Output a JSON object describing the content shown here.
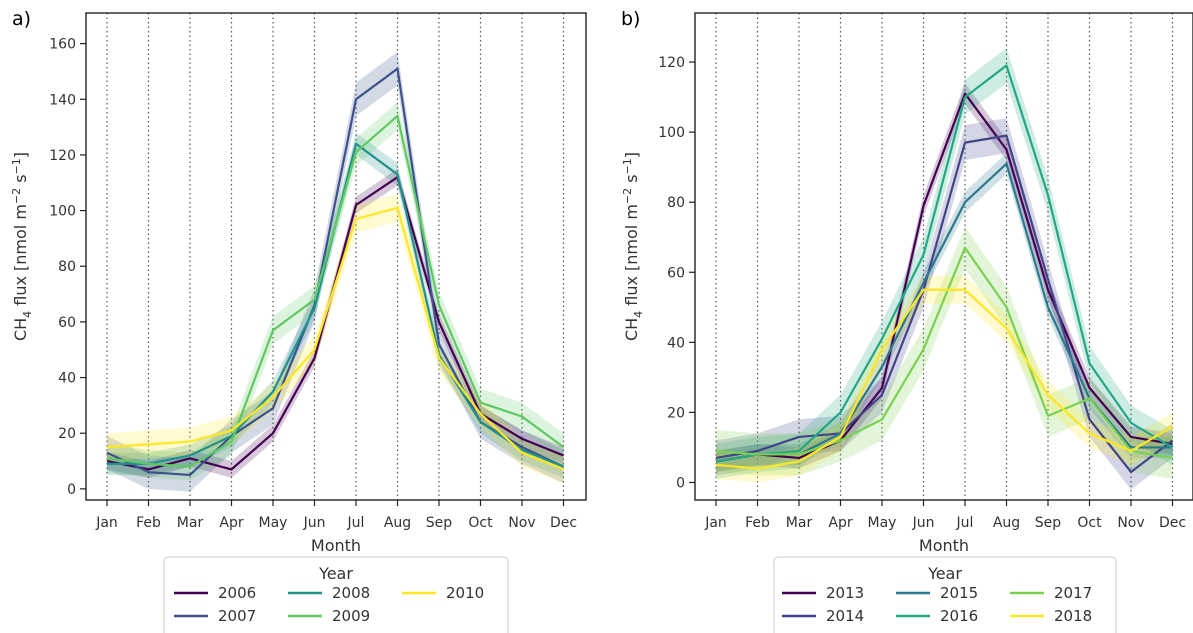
{
  "chart_data": [
    {
      "type": "line",
      "panel_label": "a)",
      "xlabel": "Month",
      "ylabel_main": "CH",
      "ylabel_sub": "4",
      "ylabel_mid": " flux [nmol m",
      "ylabel_sup1": "−2",
      "ylabel_mid2": " s",
      "ylabel_sup2": "−1",
      "ylabel_end": "]",
      "categories": [
        "Jan",
        "Feb",
        "Mar",
        "Apr",
        "May",
        "Jun",
        "Jul",
        "Aug",
        "Sep",
        "Oct",
        "Nov",
        "Dec"
      ],
      "ylim": [
        -4,
        171
      ],
      "yticks": [
        0,
        20,
        40,
        60,
        80,
        100,
        120,
        140,
        160
      ],
      "grid": "vertical dotted lines at each month",
      "legend": {
        "title": "Year",
        "placement": "below",
        "columns": 3
      },
      "series": [
        {
          "name": "2006",
          "color": "#440154",
          "values": [
            10,
            7,
            11,
            7,
            20,
            47,
            102,
            112,
            60,
            27,
            18,
            12
          ],
          "band": 3
        },
        {
          "name": "2007",
          "color": "#3b528b",
          "values": [
            13,
            6,
            5,
            19,
            29,
            66,
            140,
            151,
            52,
            24,
            15,
            8
          ],
          "band": 6
        },
        {
          "name": "2008",
          "color": "#21918c",
          "values": [
            9,
            9,
            12,
            19,
            35,
            65,
            124,
            113,
            48,
            24,
            14,
            8
          ],
          "band": 4
        },
        {
          "name": "2009",
          "color": "#5ec962",
          "values": [
            11,
            9,
            8,
            17,
            57,
            68,
            121,
            134,
            66,
            31,
            26,
            15
          ],
          "band": 5
        },
        {
          "name": "2010",
          "color": "#fde725",
          "values": [
            15,
            16,
            17,
            21,
            33,
            50,
            97,
            101,
            47,
            27,
            13,
            7
          ],
          "band": 5
        }
      ]
    },
    {
      "type": "line",
      "panel_label": "b)",
      "xlabel": "Month",
      "ylabel_main": "CH",
      "ylabel_sub": "4",
      "ylabel_mid": " flux [nmol m",
      "ylabel_sup1": "−2",
      "ylabel_mid2": " s",
      "ylabel_sup2": "−1",
      "ylabel_end": "]",
      "categories": [
        "Jan",
        "Feb",
        "Mar",
        "Apr",
        "May",
        "Jun",
        "Jul",
        "Aug",
        "Sep",
        "Oct",
        "Nov",
        "Dec"
      ],
      "ylim": [
        -5,
        134
      ],
      "yticks": [
        0,
        20,
        40,
        60,
        80,
        100,
        120
      ],
      "grid": "vertical dotted lines at each month",
      "legend": {
        "title": "Year",
        "placement": "below",
        "columns": 3
      },
      "series": [
        {
          "name": "2013",
          "color": "#440154",
          "values": [
            6,
            8,
            7,
            12,
            27,
            79,
            111,
            95,
            55,
            27,
            13,
            11
          ],
          "band": 3
        },
        {
          "name": "2014",
          "color": "#414487",
          "values": [
            7,
            9,
            13,
            14,
            25,
            55,
            97,
            99,
            58,
            18,
            3,
            12
          ],
          "band": 5
        },
        {
          "name": "2015",
          "color": "#2a788e",
          "values": [
            6,
            8,
            8,
            14,
            33,
            57,
            80,
            91,
            50,
            24,
            10,
            10
          ],
          "band": 3
        },
        {
          "name": "2016",
          "color": "#22a884",
          "values": [
            6,
            8,
            9,
            20,
            41,
            65,
            110,
            119,
            82,
            34,
            17,
            10
          ],
          "band": 5
        },
        {
          "name": "2017",
          "color": "#7ad151",
          "values": [
            9,
            8,
            8,
            12,
            18,
            38,
            67,
            50,
            19,
            24,
            9,
            7
          ],
          "band": 6
        },
        {
          "name": "2018",
          "color": "#fde725",
          "values": [
            5,
            4,
            6,
            13,
            38,
            55,
            55,
            44,
            25,
            14,
            9,
            16
          ],
          "band": 4
        }
      ]
    }
  ]
}
